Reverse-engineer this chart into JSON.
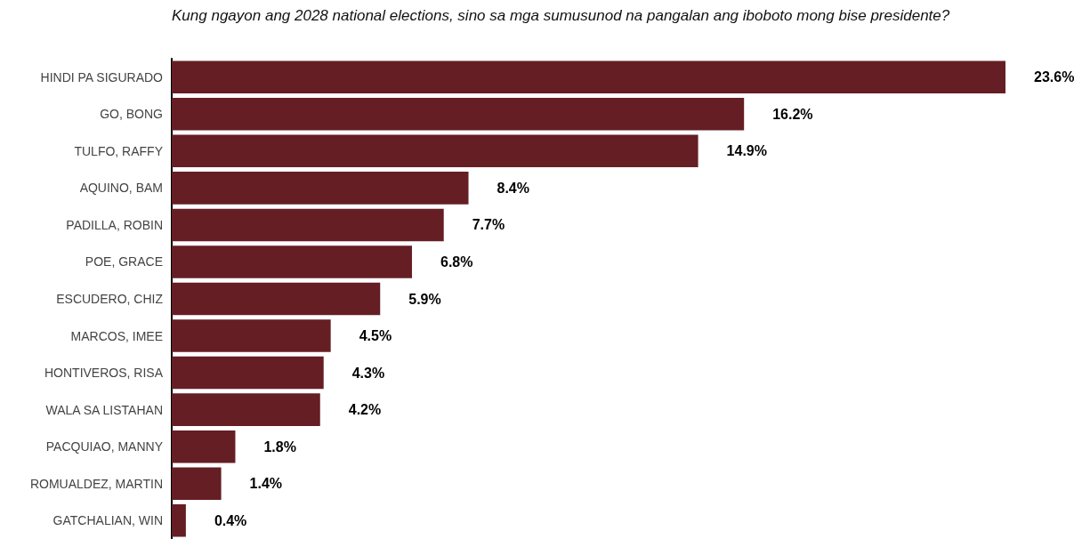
{
  "chart_data": {
    "type": "bar",
    "orientation": "horizontal",
    "title": "Kung ngayon ang 2028 national elections, sino sa mga sumusunod na pangalan ang iboboto mong bise presidente?",
    "categories": [
      "HINDI PA SIGURADO",
      "GO, BONG",
      "TULFO, RAFFY",
      "AQUINO, BAM",
      "PADILLA, ROBIN",
      "POE, GRACE",
      "ESCUDERO, CHIZ",
      "MARCOS, IMEE",
      "HONTIVEROS, RISA",
      "WALA SA LISTAHAN",
      "PACQUIAO, MANNY",
      "ROMUALDEZ, MARTIN",
      "GATCHALIAN, WIN"
    ],
    "values": [
      23.6,
      16.2,
      14.9,
      8.4,
      7.7,
      6.8,
      5.9,
      4.5,
      4.3,
      4.2,
      1.8,
      1.4,
      0.4
    ],
    "value_labels": [
      "23.6%",
      "16.2%",
      "14.9%",
      "8.4%",
      "7.7%",
      "6.8%",
      "5.9%",
      "4.5%",
      "4.3%",
      "4.2%",
      "1.8%",
      "1.4%",
      "0.4%"
    ],
    "color": "#641e24",
    "grid": false
  }
}
